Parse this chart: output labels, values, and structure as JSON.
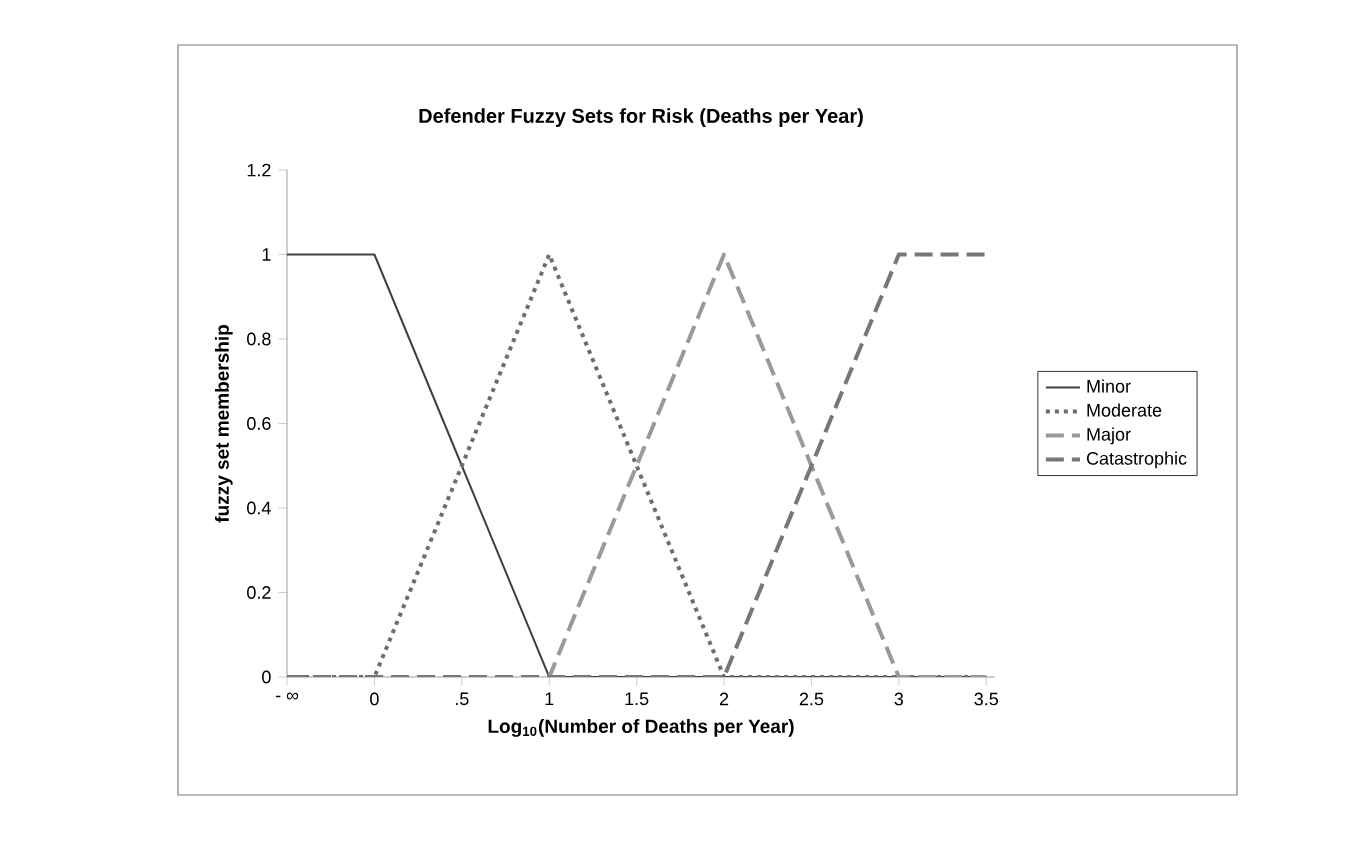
{
  "chart_data": {
    "type": "line",
    "title": "Defender Fuzzy Sets for Risk (Deaths per Year)",
    "xlabel": "Log$_{10}$(Number of Deaths per Year)",
    "ylabel": "fuzzy set membership",
    "categories": [
      "- ∞",
      "0",
      ".5",
      "1",
      "1.5",
      "2",
      "2.5",
      "3",
      "3.5"
    ],
    "series": [
      {
        "name": "Minor",
        "color": "#404040",
        "line_style": "solid",
        "values": [
          1,
          1,
          0.5,
          0,
          0,
          0,
          0,
          0,
          0
        ]
      },
      {
        "name": "Moderate",
        "color": "#6e6e6e",
        "line_style": "dotted",
        "values": [
          0,
          0,
          0.5,
          1,
          0.5,
          0,
          0,
          0,
          0
        ]
      },
      {
        "name": "Major",
        "color": "#9a9a9a",
        "line_style": "dashed",
        "values": [
          0,
          0,
          0,
          0,
          0.5,
          1,
          0.5,
          0,
          0
        ]
      },
      {
        "name": "Catastrophic",
        "color": "#777777",
        "line_style": "dashed",
        "values": [
          0,
          0,
          0,
          0,
          0,
          0,
          0.5,
          1,
          1
        ]
      }
    ],
    "ylim": [
      0,
      1.2
    ],
    "yticks": [
      0,
      0.2,
      0.4,
      0.6,
      0.8,
      1,
      1.2
    ],
    "grid": false,
    "legend": "right",
    "marker": "none"
  }
}
